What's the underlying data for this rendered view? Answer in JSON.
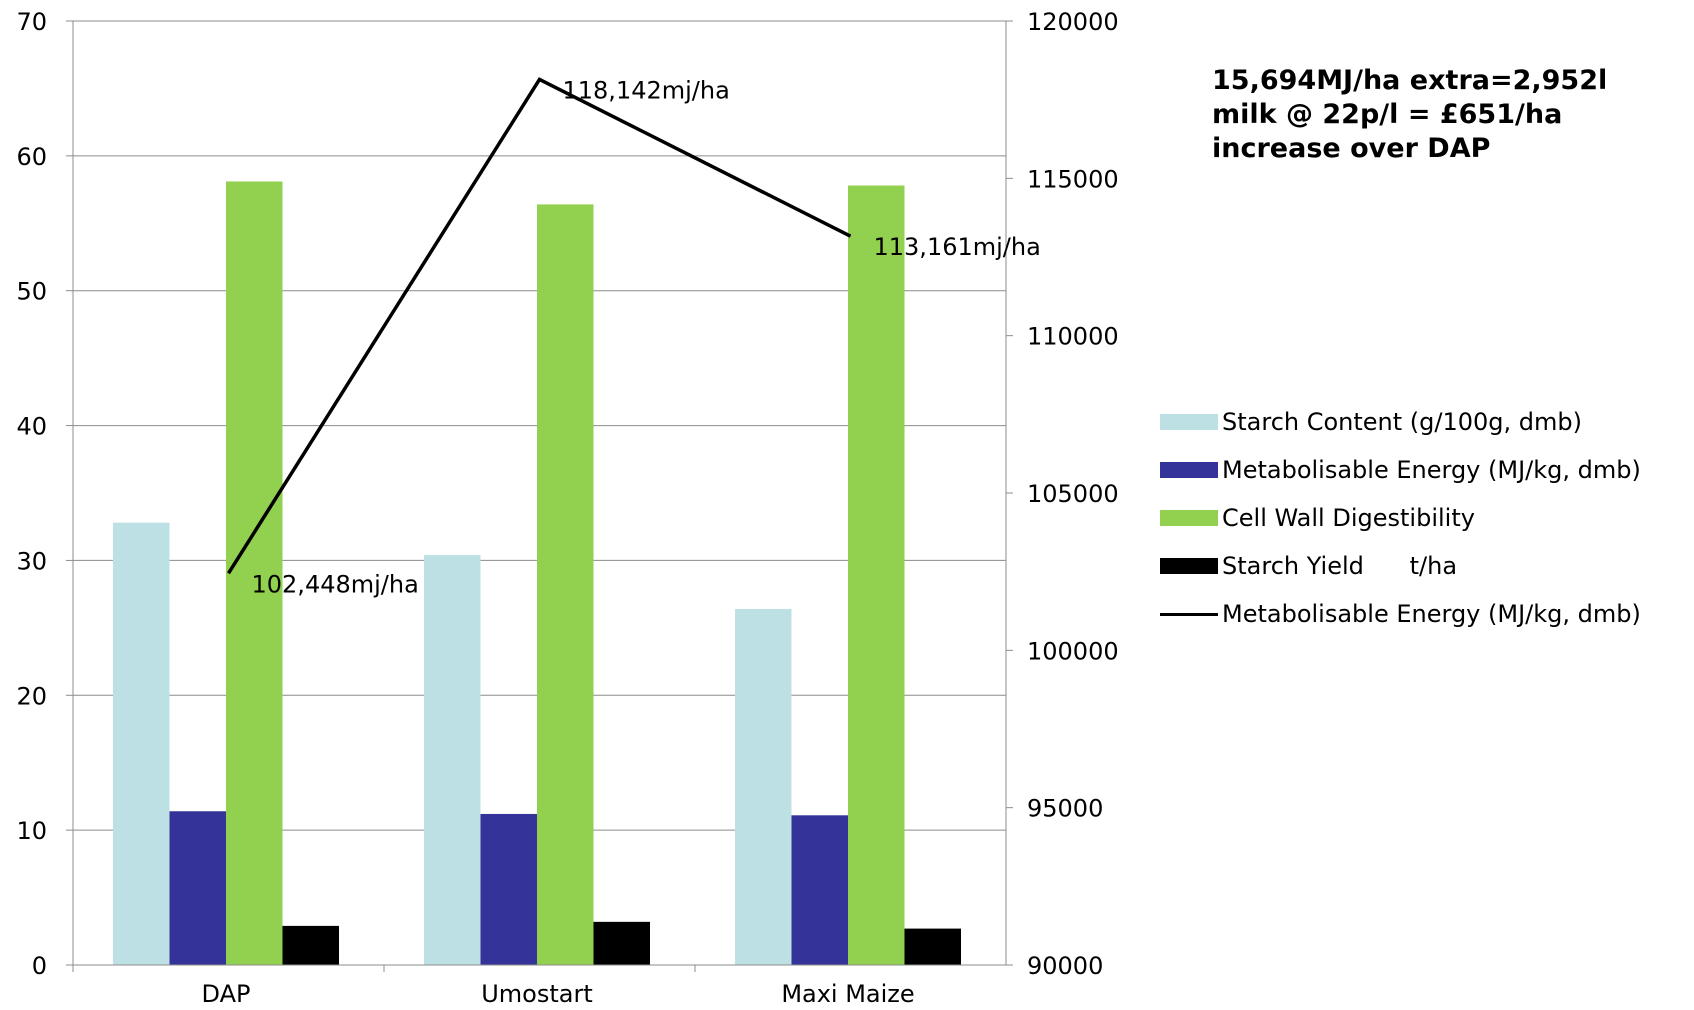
{
  "chart_data": {
    "type": "bar",
    "categories": [
      "DAP",
      "Umostart",
      "Maxi Maize"
    ],
    "series": [
      {
        "name": "Starch Content (g/100g, dmb)",
        "type": "bar",
        "axis": "left",
        "color": "#bce0e4",
        "values": [
          32.8,
          30.4,
          26.4
        ]
      },
      {
        "name": "Metabolisable Energy (MJ/kg, dmb)",
        "type": "bar",
        "axis": "left",
        "color": "#333399",
        "values": [
          11.4,
          11.2,
          11.1
        ]
      },
      {
        "name": "Cell Wall Digestibility",
        "type": "bar",
        "axis": "left",
        "color": "#92d050",
        "values": [
          58.1,
          56.4,
          57.8
        ]
      },
      {
        "name": "Starch Yield      t/ha",
        "type": "bar",
        "axis": "left",
        "color": "#000000",
        "values": [
          2.9,
          3.2,
          2.7
        ]
      },
      {
        "name": "Metabolisable Energy (MJ/kg, dmb)",
        "type": "line",
        "axis": "right",
        "color": "#000000",
        "values": [
          102448,
          118142,
          113161
        ],
        "labels": [
          "102,448mj/ha",
          "118,142mj/ha",
          "113,161mj/ha"
        ]
      }
    ],
    "y_left": {
      "min": 0,
      "max": 70,
      "ticks": [
        "0",
        "10",
        "20",
        "30",
        "40",
        "50",
        "60",
        "70"
      ]
    },
    "y_right": {
      "min": 90000,
      "max": 120000,
      "ticks": [
        "90000",
        "95000",
        "100000",
        "105000",
        "110000",
        "115000",
        "120000"
      ]
    },
    "grid": true,
    "legend_position": "right",
    "annotation": [
      "15,694MJ/ha  extra=2,952l",
      "milk @ 22p/l = £651/ha",
      "increase over DAP"
    ]
  }
}
